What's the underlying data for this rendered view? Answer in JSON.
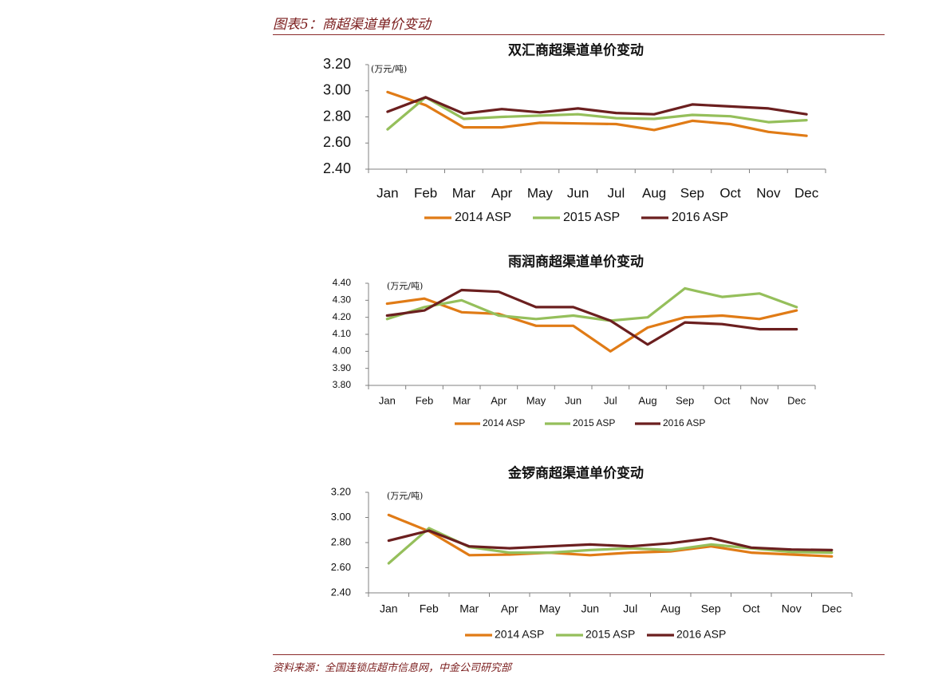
{
  "figure": {
    "title": "图表5：商超渠道单价变动",
    "source": "资料来源：全国连锁店超市信息网，中金公司研究部"
  },
  "colors": {
    "s2014": "#e07b16",
    "s2015": "#95bf5b",
    "s2016": "#6b1f1f",
    "accent": "#8b2a2a"
  },
  "chart_data": [
    {
      "type": "line",
      "title": "双汇商超渠道单价变动",
      "unit_label": "(万元/吨)",
      "categories": [
        "Jan",
        "Feb",
        "Mar",
        "Apr",
        "May",
        "Jun",
        "Jul",
        "Aug",
        "Sep",
        "Oct",
        "Nov",
        "Dec"
      ],
      "ylim": [
        2.4,
        3.2
      ],
      "ticks": [
        "2.40",
        "2.60",
        "2.80",
        "3.00",
        "3.20"
      ],
      "grid": false,
      "legend": "bottom",
      "series": [
        {
          "name": "2014 ASP",
          "values": [
            2.99,
            2.89,
            2.72,
            2.72,
            2.755,
            2.75,
            2.745,
            2.7,
            2.77,
            2.745,
            2.685,
            2.655
          ]
        },
        {
          "name": "2015 ASP",
          "values": [
            2.705,
            2.95,
            2.785,
            2.8,
            2.81,
            2.82,
            2.79,
            2.785,
            2.815,
            2.805,
            2.76,
            2.775
          ]
        },
        {
          "name": "2016 ASP",
          "values": [
            2.84,
            2.95,
            2.825,
            2.86,
            2.835,
            2.865,
            2.83,
            2.82,
            2.895,
            2.88,
            2.865,
            2.82
          ]
        }
      ]
    },
    {
      "type": "line",
      "title": "雨润商超渠道单价变动",
      "unit_label": "(万元/吨)",
      "categories": [
        "Jan",
        "Feb",
        "Mar",
        "Apr",
        "May",
        "Jun",
        "Jul",
        "Aug",
        "Sep",
        "Oct",
        "Nov",
        "Dec"
      ],
      "ylim": [
        3.8,
        4.4
      ],
      "ticks": [
        "3.80",
        "3.90",
        "4.00",
        "4.10",
        "4.20",
        "4.30",
        "4.40"
      ],
      "grid": false,
      "legend": "bottom",
      "series": [
        {
          "name": "2014 ASP",
          "values": [
            4.28,
            4.31,
            4.23,
            4.22,
            4.15,
            4.15,
            4.0,
            4.14,
            4.2,
            4.21,
            4.19,
            4.24
          ]
        },
        {
          "name": "2015 ASP",
          "values": [
            4.19,
            4.26,
            4.3,
            4.21,
            4.19,
            4.21,
            4.18,
            4.2,
            4.37,
            4.32,
            4.34,
            4.26
          ]
        },
        {
          "name": "2016 ASP",
          "values": [
            4.21,
            4.24,
            4.36,
            4.35,
            4.26,
            4.26,
            4.18,
            4.04,
            4.17,
            4.16,
            4.13,
            4.13
          ]
        }
      ]
    },
    {
      "type": "line",
      "title": "金锣商超渠道单价变动",
      "unit_label": "(万元/吨)",
      "categories": [
        "Jan",
        "Feb",
        "Mar",
        "Apr",
        "May",
        "Jun",
        "Jul",
        "Aug",
        "Sep",
        "Oct",
        "Nov",
        "Dec"
      ],
      "ylim": [
        2.4,
        3.2
      ],
      "ticks": [
        "2.40",
        "2.60",
        "2.80",
        "3.00",
        "3.20"
      ],
      "grid": false,
      "legend": "bottom",
      "series": [
        {
          "name": "2014 ASP",
          "values": [
            3.02,
            2.89,
            2.7,
            2.705,
            2.72,
            2.7,
            2.72,
            2.73,
            2.77,
            2.72,
            2.705,
            2.69
          ]
        },
        {
          "name": "2015 ASP",
          "values": [
            2.635,
            2.915,
            2.765,
            2.72,
            2.72,
            2.74,
            2.755,
            2.74,
            2.785,
            2.755,
            2.725,
            2.72
          ]
        },
        {
          "name": "2016 ASP",
          "values": [
            2.815,
            2.895,
            2.77,
            2.755,
            2.77,
            2.785,
            2.77,
            2.795,
            2.835,
            2.76,
            2.745,
            2.74
          ]
        }
      ]
    }
  ]
}
